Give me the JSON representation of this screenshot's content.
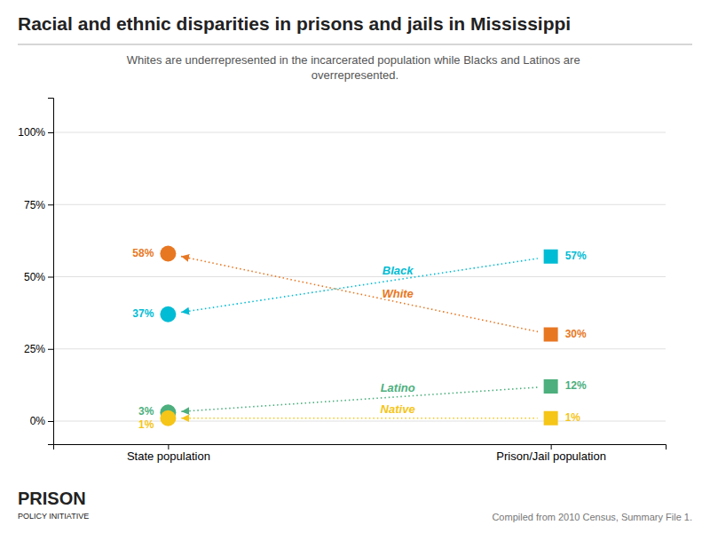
{
  "chart_data": {
    "type": "slope",
    "title": "Racial and ethnic disparities in prisons and jails in Mississippi",
    "subtitle": "Whites are underrepresented in the incarcerated population while Blacks and Latinos are\noverrepresented.",
    "annotations": [
      "Compiled from 2010 Census, Summary File 1.",
      "PRISON",
      "POLICY INITIATIVE"
    ],
    "categories": [
      "State population",
      "Prison/Jail population"
    ],
    "series": [
      {
        "name": "White",
        "color": "#e87722",
        "values": [
          58,
          30
        ],
        "value_labels": [
          "58%",
          "30%"
        ]
      },
      {
        "name": "Black",
        "color": "#00bcd4",
        "values": [
          37,
          57
        ],
        "value_labels": [
          "37%",
          "57%"
        ]
      },
      {
        "name": "Latino",
        "color": "#4caf7d",
        "values": [
          3,
          12
        ],
        "value_labels": [
          "3%",
          "12%"
        ]
      },
      {
        "name": "Native",
        "color": "#f5c518",
        "values": [
          1,
          1
        ],
        "value_labels": [
          "1%",
          "1%"
        ]
      }
    ],
    "ylim": [
      -8,
      112
    ],
    "yticks": [
      {
        "value": 0,
        "label": "0%"
      },
      {
        "value": 25,
        "label": "25%"
      },
      {
        "value": 50,
        "label": "50%"
      },
      {
        "value": 75,
        "label": "75%"
      },
      {
        "value": 100,
        "label": "100%"
      }
    ],
    "grid": true,
    "data_labels": true
  }
}
